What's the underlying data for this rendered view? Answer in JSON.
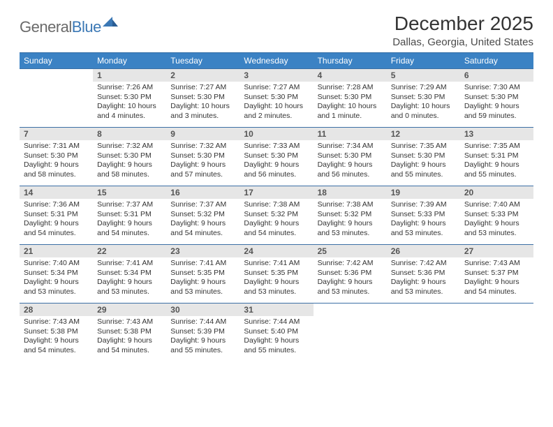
{
  "logo": {
    "text_gray": "General",
    "text_blue": "Blue"
  },
  "title": "December 2025",
  "location": "Dallas, Georgia, United States",
  "colors": {
    "header_bg": "#3b82c4",
    "header_border": "#2e6aa3",
    "row_border": "#3b6fa5",
    "daynum_bg": "#e6e6e6",
    "logo_gray": "#6a6a6a",
    "logo_blue": "#3b78b5"
  },
  "week_labels": [
    "Sunday",
    "Monday",
    "Tuesday",
    "Wednesday",
    "Thursday",
    "Friday",
    "Saturday"
  ],
  "weeks": [
    [
      {
        "n": "",
        "s": "",
        "t": "",
        "d": ""
      },
      {
        "n": "1",
        "s": "Sunrise: 7:26 AM",
        "t": "Sunset: 5:30 PM",
        "d": "Daylight: 10 hours and 4 minutes."
      },
      {
        "n": "2",
        "s": "Sunrise: 7:27 AM",
        "t": "Sunset: 5:30 PM",
        "d": "Daylight: 10 hours and 3 minutes."
      },
      {
        "n": "3",
        "s": "Sunrise: 7:27 AM",
        "t": "Sunset: 5:30 PM",
        "d": "Daylight: 10 hours and 2 minutes."
      },
      {
        "n": "4",
        "s": "Sunrise: 7:28 AM",
        "t": "Sunset: 5:30 PM",
        "d": "Daylight: 10 hours and 1 minute."
      },
      {
        "n": "5",
        "s": "Sunrise: 7:29 AM",
        "t": "Sunset: 5:30 PM",
        "d": "Daylight: 10 hours and 0 minutes."
      },
      {
        "n": "6",
        "s": "Sunrise: 7:30 AM",
        "t": "Sunset: 5:30 PM",
        "d": "Daylight: 9 hours and 59 minutes."
      }
    ],
    [
      {
        "n": "7",
        "s": "Sunrise: 7:31 AM",
        "t": "Sunset: 5:30 PM",
        "d": "Daylight: 9 hours and 58 minutes."
      },
      {
        "n": "8",
        "s": "Sunrise: 7:32 AM",
        "t": "Sunset: 5:30 PM",
        "d": "Daylight: 9 hours and 58 minutes."
      },
      {
        "n": "9",
        "s": "Sunrise: 7:32 AM",
        "t": "Sunset: 5:30 PM",
        "d": "Daylight: 9 hours and 57 minutes."
      },
      {
        "n": "10",
        "s": "Sunrise: 7:33 AM",
        "t": "Sunset: 5:30 PM",
        "d": "Daylight: 9 hours and 56 minutes."
      },
      {
        "n": "11",
        "s": "Sunrise: 7:34 AM",
        "t": "Sunset: 5:30 PM",
        "d": "Daylight: 9 hours and 56 minutes."
      },
      {
        "n": "12",
        "s": "Sunrise: 7:35 AM",
        "t": "Sunset: 5:30 PM",
        "d": "Daylight: 9 hours and 55 minutes."
      },
      {
        "n": "13",
        "s": "Sunrise: 7:35 AM",
        "t": "Sunset: 5:31 PM",
        "d": "Daylight: 9 hours and 55 minutes."
      }
    ],
    [
      {
        "n": "14",
        "s": "Sunrise: 7:36 AM",
        "t": "Sunset: 5:31 PM",
        "d": "Daylight: 9 hours and 54 minutes."
      },
      {
        "n": "15",
        "s": "Sunrise: 7:37 AM",
        "t": "Sunset: 5:31 PM",
        "d": "Daylight: 9 hours and 54 minutes."
      },
      {
        "n": "16",
        "s": "Sunrise: 7:37 AM",
        "t": "Sunset: 5:32 PM",
        "d": "Daylight: 9 hours and 54 minutes."
      },
      {
        "n": "17",
        "s": "Sunrise: 7:38 AM",
        "t": "Sunset: 5:32 PM",
        "d": "Daylight: 9 hours and 54 minutes."
      },
      {
        "n": "18",
        "s": "Sunrise: 7:38 AM",
        "t": "Sunset: 5:32 PM",
        "d": "Daylight: 9 hours and 53 minutes."
      },
      {
        "n": "19",
        "s": "Sunrise: 7:39 AM",
        "t": "Sunset: 5:33 PM",
        "d": "Daylight: 9 hours and 53 minutes."
      },
      {
        "n": "20",
        "s": "Sunrise: 7:40 AM",
        "t": "Sunset: 5:33 PM",
        "d": "Daylight: 9 hours and 53 minutes."
      }
    ],
    [
      {
        "n": "21",
        "s": "Sunrise: 7:40 AM",
        "t": "Sunset: 5:34 PM",
        "d": "Daylight: 9 hours and 53 minutes."
      },
      {
        "n": "22",
        "s": "Sunrise: 7:41 AM",
        "t": "Sunset: 5:34 PM",
        "d": "Daylight: 9 hours and 53 minutes."
      },
      {
        "n": "23",
        "s": "Sunrise: 7:41 AM",
        "t": "Sunset: 5:35 PM",
        "d": "Daylight: 9 hours and 53 minutes."
      },
      {
        "n": "24",
        "s": "Sunrise: 7:41 AM",
        "t": "Sunset: 5:35 PM",
        "d": "Daylight: 9 hours and 53 minutes."
      },
      {
        "n": "25",
        "s": "Sunrise: 7:42 AM",
        "t": "Sunset: 5:36 PM",
        "d": "Daylight: 9 hours and 53 minutes."
      },
      {
        "n": "26",
        "s": "Sunrise: 7:42 AM",
        "t": "Sunset: 5:36 PM",
        "d": "Daylight: 9 hours and 53 minutes."
      },
      {
        "n": "27",
        "s": "Sunrise: 7:43 AM",
        "t": "Sunset: 5:37 PM",
        "d": "Daylight: 9 hours and 54 minutes."
      }
    ],
    [
      {
        "n": "28",
        "s": "Sunrise: 7:43 AM",
        "t": "Sunset: 5:38 PM",
        "d": "Daylight: 9 hours and 54 minutes."
      },
      {
        "n": "29",
        "s": "Sunrise: 7:43 AM",
        "t": "Sunset: 5:38 PM",
        "d": "Daylight: 9 hours and 54 minutes."
      },
      {
        "n": "30",
        "s": "Sunrise: 7:44 AM",
        "t": "Sunset: 5:39 PM",
        "d": "Daylight: 9 hours and 55 minutes."
      },
      {
        "n": "31",
        "s": "Sunrise: 7:44 AM",
        "t": "Sunset: 5:40 PM",
        "d": "Daylight: 9 hours and 55 minutes."
      },
      {
        "n": "",
        "s": "",
        "t": "",
        "d": ""
      },
      {
        "n": "",
        "s": "",
        "t": "",
        "d": ""
      },
      {
        "n": "",
        "s": "",
        "t": "",
        "d": ""
      }
    ]
  ]
}
